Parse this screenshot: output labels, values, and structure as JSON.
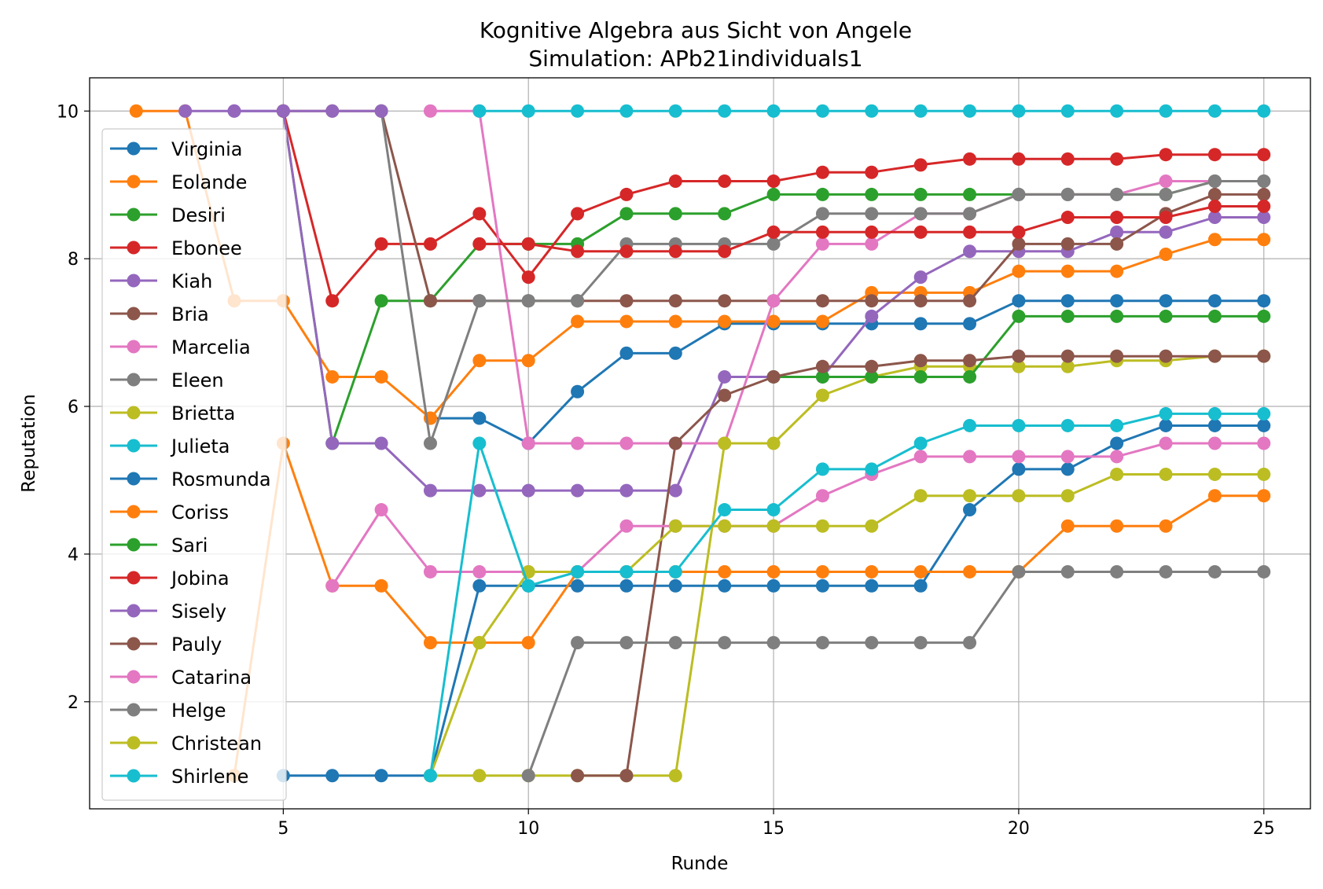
{
  "chart_data": {
    "type": "line",
    "title": "Kognitive Algebra aus Sicht von Angele",
    "subtitle": "Simulation: APb21individuals1",
    "xlabel": "Runde",
    "ylabel": "Reputation",
    "xlim": [
      1.05,
      25.95
    ],
    "ylim": [
      0.55,
      10.45
    ],
    "xticks": [
      5,
      10,
      15,
      20,
      25
    ],
    "yticks": [
      2,
      4,
      6,
      8,
      10
    ],
    "grid": true,
    "legend_position": "left",
    "series": [
      {
        "name": "Virginia",
        "color": "#1f77b4",
        "x": [
          8,
          9,
          10,
          11,
          12,
          13,
          14,
          15,
          16,
          17,
          18,
          19,
          20,
          21,
          22,
          23,
          24,
          25
        ],
        "y": [
          5.84,
          5.84,
          5.5,
          6.2,
          6.72,
          6.72,
          7.12,
          7.12,
          7.12,
          7.12,
          7.12,
          7.12,
          7.43,
          7.43,
          7.43,
          7.43,
          7.43,
          7.43
        ]
      },
      {
        "name": "Eolande",
        "color": "#ff7f0e",
        "x": [
          2,
          3,
          4,
          5,
          6,
          7,
          8,
          9,
          10,
          11,
          12,
          13,
          14,
          15,
          16,
          17,
          18,
          19,
          20,
          21,
          22,
          23,
          24,
          25
        ],
        "y": [
          10,
          10,
          7.43,
          7.43,
          6.4,
          6.4,
          5.84,
          6.62,
          6.62,
          7.15,
          7.15,
          7.15,
          7.15,
          7.15,
          7.15,
          7.54,
          7.54,
          7.54,
          7.83,
          7.83,
          7.83,
          8.06,
          8.26,
          8.26
        ]
      },
      {
        "name": "Desiri",
        "color": "#2ca02c",
        "x": [
          5,
          6,
          7,
          8,
          9,
          10,
          11,
          12,
          13,
          14,
          15,
          16,
          17,
          18,
          19,
          20,
          21,
          22,
          23,
          24,
          25
        ],
        "y": [
          10,
          5.5,
          7.43,
          7.43,
          8.2,
          8.2,
          8.2,
          8.61,
          8.61,
          8.61,
          8.87,
          8.87,
          8.87,
          8.87,
          8.87,
          8.87,
          8.87,
          8.87,
          8.87,
          9.05,
          9.05
        ]
      },
      {
        "name": "Ebonee",
        "color": "#d62728",
        "x": [
          5,
          6,
          7,
          8,
          9,
          10,
          11,
          12,
          13,
          14,
          15,
          16,
          17,
          18,
          19,
          20,
          21,
          22,
          23,
          24,
          25
        ],
        "y": [
          10,
          7.43,
          8.2,
          8.2,
          8.61,
          7.75,
          8.61,
          8.87,
          9.05,
          9.05,
          9.05,
          9.17,
          9.17,
          9.27,
          9.35,
          9.35,
          9.35,
          9.35,
          9.41,
          9.41,
          9.41
        ]
      },
      {
        "name": "Kiah",
        "color": "#9467bd",
        "x": [
          3,
          4,
          5,
          6,
          7,
          8,
          9,
          10,
          11,
          12,
          13,
          14,
          15,
          16,
          17,
          18,
          19,
          20,
          21,
          22,
          23,
          24,
          25
        ],
        "y": [
          10,
          10,
          10,
          5.5,
          5.5,
          4.86,
          4.86,
          4.86,
          4.86,
          4.86,
          4.86,
          6.4,
          6.4,
          6.4,
          7.22,
          7.75,
          8.1,
          8.1,
          8.1,
          8.36,
          8.36,
          8.56,
          8.56
        ]
      },
      {
        "name": "Bria",
        "color": "#8c564b",
        "x": [
          5,
          6,
          7,
          8,
          9,
          10,
          11,
          12,
          13,
          14,
          15,
          16,
          17,
          18,
          19,
          20,
          21,
          22,
          23,
          24,
          25
        ],
        "y": [
          10,
          10,
          10,
          7.43,
          7.43,
          7.43,
          7.43,
          7.43,
          7.43,
          7.43,
          7.43,
          7.43,
          7.43,
          7.43,
          7.43,
          8.2,
          8.2,
          8.2,
          8.61,
          8.87,
          8.87
        ]
      },
      {
        "name": "Marcelia",
        "color": "#e377c2",
        "x": [
          8,
          9,
          10,
          11,
          12,
          13,
          14,
          15,
          16,
          17,
          18,
          19,
          20,
          21,
          22,
          23,
          24,
          25
        ],
        "y": [
          10,
          10,
          5.5,
          5.5,
          5.5,
          5.5,
          5.5,
          7.43,
          8.2,
          8.2,
          8.61,
          8.61,
          8.87,
          8.87,
          8.87,
          9.05,
          9.05,
          9.05
        ]
      },
      {
        "name": "Eleen",
        "color": "#7f7f7f",
        "x": [
          7,
          8,
          9,
          10,
          11,
          12,
          13,
          14,
          15,
          16,
          17,
          18,
          19,
          20,
          21,
          22,
          23,
          24,
          25
        ],
        "y": [
          10,
          5.5,
          7.43,
          7.43,
          7.43,
          8.2,
          8.2,
          8.2,
          8.2,
          8.61,
          8.61,
          8.61,
          8.61,
          8.87,
          8.87,
          8.87,
          8.87,
          9.05,
          9.05
        ]
      },
      {
        "name": "Brietta",
        "color": "#bcbd22",
        "x": [
          8,
          9,
          10,
          11,
          12,
          13,
          14,
          15,
          16,
          17,
          18,
          19,
          20,
          21,
          22,
          23,
          24,
          25
        ],
        "y": [
          1,
          1,
          1,
          1,
          1,
          1,
          5.5,
          5.5,
          6.15,
          6.4,
          6.54,
          6.54,
          6.54,
          6.54,
          6.62,
          6.62,
          6.68,
          6.68
        ]
      },
      {
        "name": "Julieta",
        "color": "#17becf",
        "x": [
          9,
          10,
          11,
          12,
          13,
          14,
          15,
          16,
          17,
          18,
          19,
          20,
          21,
          22,
          23,
          24,
          25
        ],
        "y": [
          10,
          10,
          10,
          10,
          10,
          10,
          10,
          10,
          10,
          10,
          10,
          10,
          10,
          10,
          10,
          10,
          10
        ]
      },
      {
        "name": "Rosmunda",
        "color": "#1f77b4",
        "x": [
          5,
          6,
          7,
          8,
          9,
          10,
          11,
          12,
          13,
          14,
          15,
          16,
          17,
          18,
          19,
          20,
          21,
          22,
          23,
          24,
          25
        ],
        "y": [
          1,
          1,
          1,
          1,
          3.57,
          3.57,
          3.57,
          3.57,
          3.57,
          3.57,
          3.57,
          3.57,
          3.57,
          3.57,
          4.6,
          5.15,
          5.15,
          5.5,
          5.74,
          5.74,
          5.74
        ]
      },
      {
        "name": "Coriss",
        "color": "#ff7f0e",
        "x": [
          4,
          5,
          6,
          7,
          8,
          9,
          10,
          11,
          12,
          13,
          14,
          15,
          16,
          17,
          18,
          19,
          20,
          21,
          22,
          23,
          24,
          25
        ],
        "y": [
          1,
          5.5,
          3.57,
          3.57,
          2.8,
          2.8,
          2.8,
          3.76,
          3.76,
          3.76,
          3.76,
          3.76,
          3.76,
          3.76,
          3.76,
          3.76,
          3.76,
          4.38,
          4.38,
          4.38,
          4.79,
          4.79
        ]
      },
      {
        "name": "Sari",
        "color": "#2ca02c",
        "x": [
          15,
          16,
          17,
          18,
          19,
          20,
          21,
          22,
          23,
          24,
          25
        ],
        "y": [
          6.4,
          6.4,
          6.4,
          6.4,
          6.4,
          7.22,
          7.22,
          7.22,
          7.22,
          7.22,
          7.22
        ]
      },
      {
        "name": "Jobina",
        "color": "#d62728",
        "x": [
          9,
          10,
          11,
          12,
          13,
          14,
          15,
          16,
          17,
          18,
          19,
          20,
          21,
          22,
          23,
          24,
          25
        ],
        "y": [
          8.2,
          8.2,
          8.1,
          8.1,
          8.1,
          8.1,
          8.36,
          8.36,
          8.36,
          8.36,
          8.36,
          8.36,
          8.56,
          8.56,
          8.56,
          8.71,
          8.71
        ]
      },
      {
        "name": "Sisely",
        "color": "#9467bd",
        "x": [
          4,
          5,
          6,
          7
        ],
        "y": [
          10,
          10,
          10,
          10
        ]
      },
      {
        "name": "Pauly",
        "color": "#8c564b",
        "x": [
          11,
          12,
          13,
          14,
          15,
          16,
          17,
          18,
          19,
          20,
          21,
          22,
          23,
          24,
          25
        ],
        "y": [
          1,
          1,
          5.5,
          6.15,
          6.4,
          6.54,
          6.54,
          6.62,
          6.62,
          6.68,
          6.68,
          6.68,
          6.68,
          6.68,
          6.68
        ]
      },
      {
        "name": "Catarina",
        "color": "#e377c2",
        "x": [
          6,
          7,
          8,
          9,
          10,
          11,
          12,
          13,
          14,
          15,
          16,
          17,
          18,
          19,
          20,
          21,
          22,
          23,
          24,
          25
        ],
        "y": [
          3.57,
          4.6,
          3.76,
          3.76,
          3.76,
          3.76,
          4.38,
          4.38,
          4.38,
          4.38,
          4.79,
          5.08,
          5.32,
          5.32,
          5.32,
          5.32,
          5.32,
          5.5,
          5.5,
          5.5
        ]
      },
      {
        "name": "Helge",
        "color": "#7f7f7f",
        "x": [
          10,
          11,
          12,
          13,
          14,
          15,
          16,
          17,
          18,
          19,
          20,
          21,
          22,
          23,
          24,
          25
        ],
        "y": [
          1,
          2.8,
          2.8,
          2.8,
          2.8,
          2.8,
          2.8,
          2.8,
          2.8,
          2.8,
          3.76,
          3.76,
          3.76,
          3.76,
          3.76,
          3.76
        ]
      },
      {
        "name": "Christean",
        "color": "#bcbd22",
        "x": [
          8,
          9,
          10,
          11,
          12,
          13,
          14,
          15,
          16,
          17,
          18,
          19,
          20,
          21,
          22,
          23,
          24,
          25
        ],
        "y": [
          1,
          2.8,
          3.76,
          3.76,
          3.76,
          4.38,
          4.38,
          4.38,
          4.38,
          4.38,
          4.79,
          4.79,
          4.79,
          4.79,
          5.08,
          5.08,
          5.08,
          5.08
        ]
      },
      {
        "name": "Shirlene",
        "color": "#17becf",
        "x": [
          8,
          9,
          10,
          11,
          12,
          13,
          14,
          15,
          16,
          17,
          18,
          19,
          20,
          21,
          22,
          23,
          24,
          25
        ],
        "y": [
          1,
          5.5,
          3.57,
          3.76,
          3.76,
          3.76,
          4.6,
          4.6,
          5.15,
          5.15,
          5.5,
          5.74,
          5.74,
          5.74,
          5.74,
          5.9,
          5.9,
          5.9
        ]
      }
    ]
  }
}
